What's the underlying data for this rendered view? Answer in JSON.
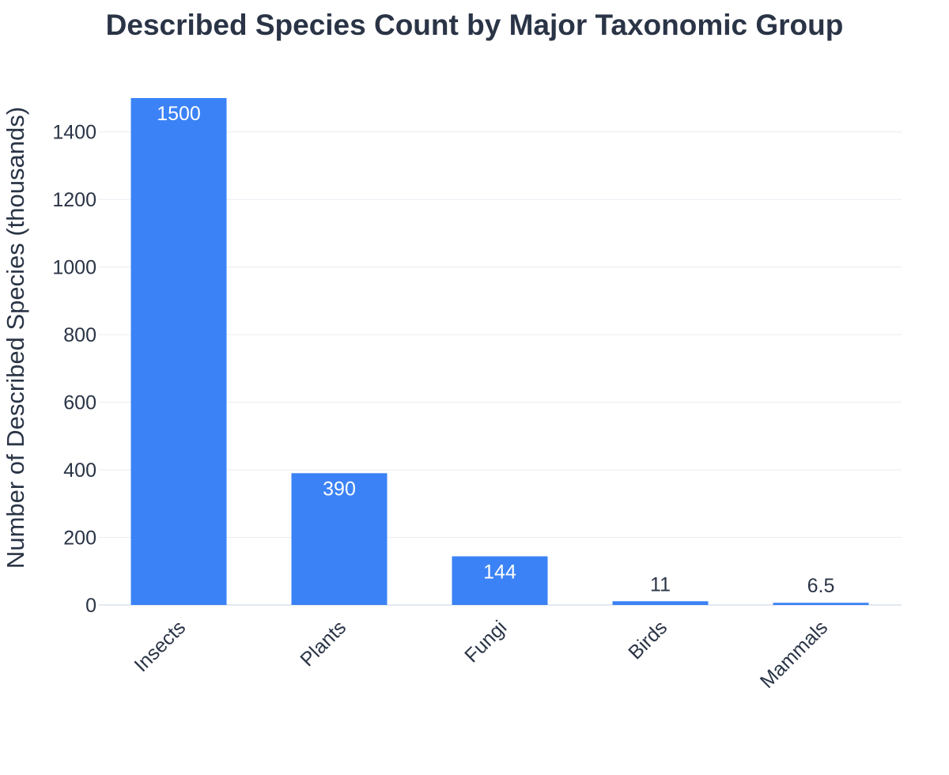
{
  "chart_data": {
    "type": "bar",
    "title": "Described Species Count by Major Taxonomic Group",
    "xlabel": "",
    "ylabel": "Number of Described Species (thousands)",
    "categories": [
      "Insects",
      "Plants",
      "Fungi",
      "Birds",
      "Mammals"
    ],
    "values": [
      1500,
      390,
      144,
      11,
      6.5
    ],
    "data_labels": [
      "1500",
      "390",
      "144",
      "11",
      "6.5"
    ],
    "ylim": [
      0,
      1500
    ],
    "yticks": [
      0,
      200,
      400,
      600,
      800,
      1000,
      1200,
      1400
    ],
    "grid": true,
    "legend": "none",
    "bar_color": "#3b82f6",
    "text_color": "#2a3446",
    "grid_color": "#e8ecf1"
  }
}
